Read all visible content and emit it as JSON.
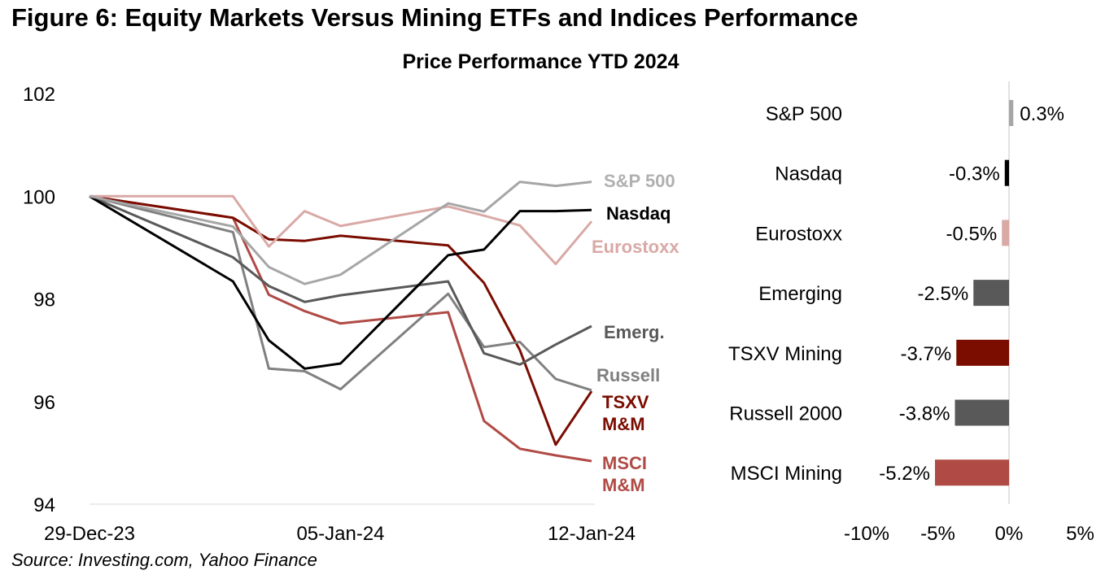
{
  "title": "Figure 6: Equity Markets Versus Mining ETFs and Indices Performance",
  "subtitle": "Price Performance YTD 2024",
  "source": "Source: Investing.com, Yahoo Finance",
  "chart_data": [
    {
      "type": "line",
      "title": "Price Performance YTD 2024",
      "x": [
        "29-Dec-23",
        "02-Jan-24",
        "03-Jan-24",
        "04-Jan-24",
        "05-Jan-24",
        "08-Jan-24",
        "09-Jan-24",
        "10-Jan-24",
        "11-Jan-24",
        "12-Jan-24"
      ],
      "x_day_offsets": [
        0,
        4,
        5,
        6,
        7,
        10,
        11,
        12,
        13,
        14
      ],
      "x_tick_labels": [
        "29-Dec-23",
        "05-Jan-24",
        "12-Jan-24"
      ],
      "x_tick_offsets": [
        0,
        7,
        14
      ],
      "ylim": [
        94,
        102
      ],
      "y_ticks": [
        94,
        96,
        98,
        100,
        102
      ],
      "grid": false,
      "series": [
        {
          "name": "S&P 500",
          "label": "S&P 500",
          "color": "#a6a6a6",
          "label_color": "#b0b0b0",
          "values": [
            100,
            99.41,
            98.62,
            98.29,
            98.47,
            99.86,
            99.7,
            100.28,
            100.2,
            100.28
          ]
        },
        {
          "name": "Nasdaq",
          "label": "Nasdaq",
          "color": "#000000",
          "label_color": "#000000",
          "values": [
            100,
            98.34,
            97.19,
            96.64,
            96.74,
            98.85,
            98.96,
            99.71,
            99.71,
            99.73
          ]
        },
        {
          "name": "Eurostoxx",
          "label": "Eurostoxx",
          "color": "#d9a9a6",
          "label_color": "#d9a9a6",
          "values": [
            100,
            100,
            99.02,
            99.71,
            99.42,
            99.8,
            99.62,
            99.43,
            98.68,
            99.51
          ]
        },
        {
          "name": "Emerging",
          "label": "Emerg.",
          "color": "#595959",
          "label_color": "#595959",
          "values": [
            100,
            98.81,
            98.25,
            97.94,
            98.07,
            98.34,
            96.94,
            96.72,
            97.11,
            97.47
          ]
        },
        {
          "name": "Russell 2000",
          "label": "Russell",
          "color": "#808080",
          "label_color": "#808080",
          "values": [
            100,
            99.3,
            96.64,
            96.59,
            96.24,
            98.1,
            97.06,
            97.16,
            96.44,
            96.22
          ]
        },
        {
          "name": "TSXV Mining",
          "label": "TSXV M&M",
          "color": "#7a0c00",
          "label_color": "#7a0c00",
          "values": [
            100,
            99.58,
            99.16,
            99.13,
            99.23,
            99.04,
            98.31,
            97.0,
            95.16,
            96.2
          ]
        },
        {
          "name": "MSCI Mining",
          "label": "MSCI M&M",
          "color": "#b04a45",
          "label_color": "#b04a45",
          "values": [
            100,
            99.58,
            98.08,
            97.76,
            97.52,
            97.74,
            95.62,
            95.08,
            94.95,
            94.84
          ]
        }
      ]
    },
    {
      "type": "bar",
      "orientation": "horizontal",
      "categories": [
        "S&P 500",
        "Nasdaq",
        "Eurostoxx",
        "Emerging",
        "TSXV Mining",
        "Russell 2000",
        "MSCI Mining"
      ],
      "values": [
        0.3,
        -0.3,
        -0.5,
        -2.5,
        -3.7,
        -3.8,
        -5.2
      ],
      "data_labels": [
        "0.3%",
        "-0.3%",
        "-0.5%",
        "-2.5%",
        "-3.7%",
        "-3.8%",
        "-5.2%"
      ],
      "colors": [
        "#a6a6a6",
        "#000000",
        "#d9a9a6",
        "#595959",
        "#7a0c00",
        "#595959",
        "#b04a45"
      ],
      "xlim": [
        -10,
        5
      ],
      "x_ticks": [
        -10,
        -5,
        0,
        5
      ],
      "x_tick_labels": [
        "-10%",
        "-5%",
        "0%",
        "5%"
      ]
    }
  ]
}
